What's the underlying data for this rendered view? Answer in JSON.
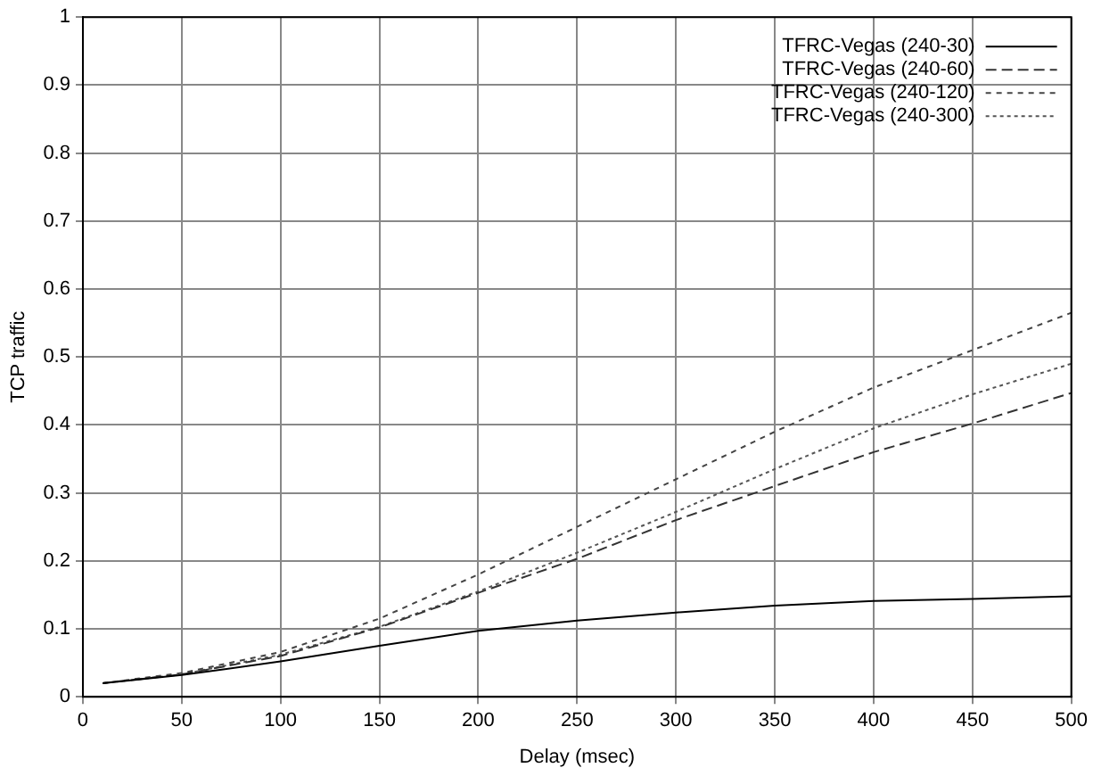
{
  "chart_data": {
    "type": "line",
    "xlabel": "Delay (msec)",
    "ylabel": "TCP traffic",
    "x": [
      10,
      50,
      100,
      150,
      200,
      250,
      300,
      350,
      400,
      450,
      500
    ],
    "series": [
      {
        "name": "TFRC-Vegas (240-30)",
        "color": "#000000",
        "line_style": "solid",
        "values": [
          0.02,
          0.032,
          0.052,
          0.075,
          0.097,
          0.112,
          0.124,
          0.134,
          0.141,
          0.144,
          0.148
        ]
      },
      {
        "name": "TFRC-Vegas (240-60)",
        "color": "#333333",
        "line_style": "dashed",
        "values": [
          0.02,
          0.033,
          0.06,
          0.102,
          0.153,
          0.203,
          0.26,
          0.31,
          0.36,
          0.402,
          0.447
        ]
      },
      {
        "name": "TFRC-Vegas (240-120)",
        "color": "#444444",
        "line_style": "dashed",
        "values": [
          0.02,
          0.035,
          0.066,
          0.115,
          0.18,
          0.25,
          0.32,
          0.39,
          0.455,
          0.51,
          0.565
        ]
      },
      {
        "name": "TFRC-Vegas (240-300)",
        "color": "#555555",
        "line_style": "dotted",
        "values": [
          0.02,
          0.033,
          0.062,
          0.103,
          0.155,
          0.212,
          0.272,
          0.335,
          0.395,
          0.445,
          0.49
        ]
      }
    ],
    "xlim": [
      0,
      500
    ],
    "xticks": [
      0,
      50,
      100,
      150,
      200,
      250,
      300,
      350,
      400,
      450,
      500
    ],
    "ylim": [
      0,
      1
    ],
    "yticks": [
      0,
      0.1,
      0.2,
      0.3,
      0.4,
      0.5,
      0.6,
      0.7,
      0.8,
      0.9,
      1
    ],
    "grid": true,
    "legend": "top right",
    "marker": "none"
  }
}
